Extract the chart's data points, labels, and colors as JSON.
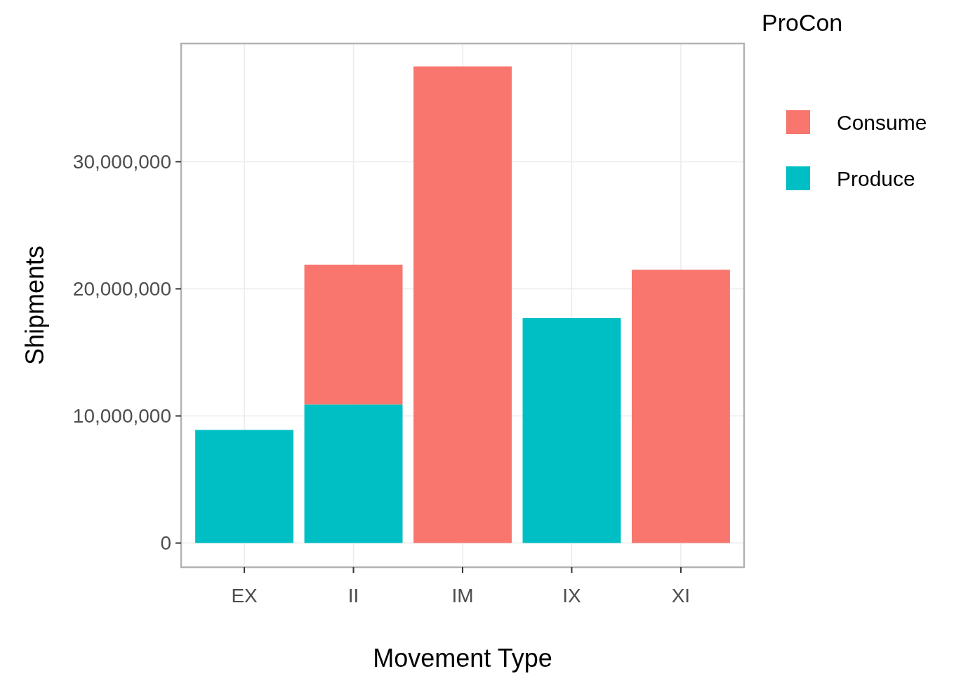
{
  "chart_data": {
    "type": "bar",
    "stacked": true,
    "xlabel": "Movement Type",
    "ylabel": "Shipments",
    "legend_title": "ProCon",
    "legend": "right",
    "grid": true,
    "categories": [
      "EX",
      "II",
      "IM",
      "IX",
      "XI"
    ],
    "series": [
      {
        "name": "Produce",
        "color": "#00bfc4",
        "values": [
          8900000,
          10900000,
          null,
          17700000,
          null
        ]
      },
      {
        "name": "Consume",
        "color": "#f8766d",
        "values": [
          null,
          11000000,
          37500000,
          null,
          21500000
        ]
      }
    ],
    "ylim": [
      -1900000,
      39300000
    ],
    "yticks": [
      {
        "value": 0,
        "label": "0"
      },
      {
        "value": 10000000,
        "label": "10,000,000"
      },
      {
        "value": 20000000,
        "label": "20,000,000"
      },
      {
        "value": 30000000,
        "label": "30,000,000"
      }
    ]
  }
}
